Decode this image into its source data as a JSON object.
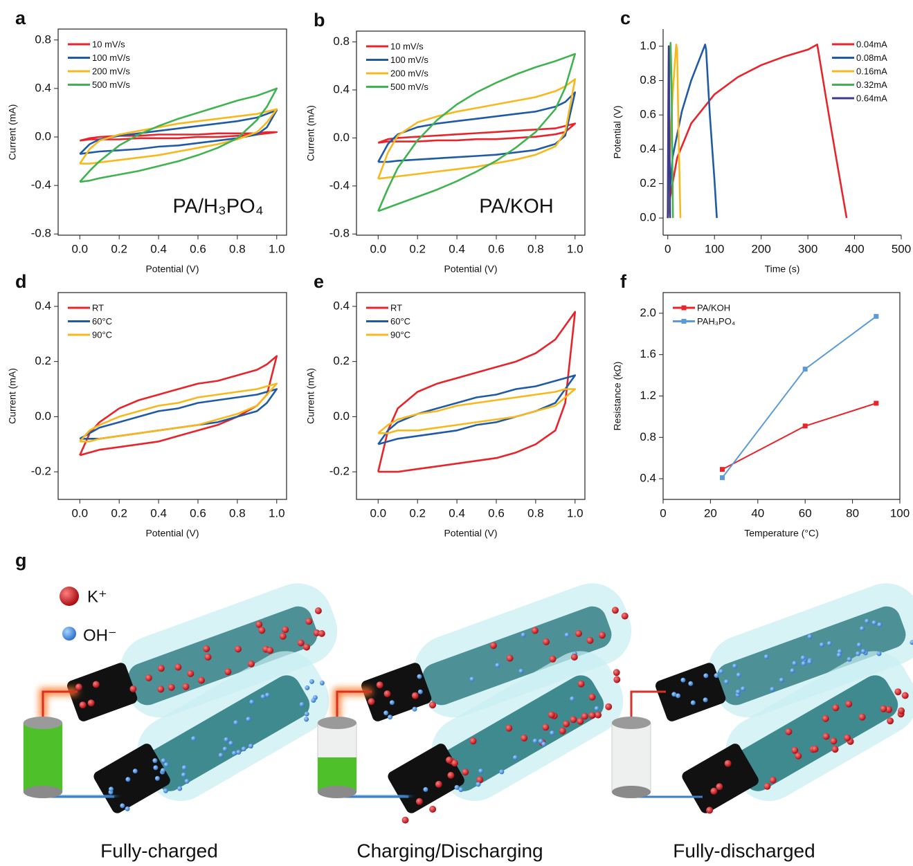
{
  "chart_data": [
    {
      "type": "line",
      "panel": "a",
      "frame": true,
      "xlabel": "Potential (V)",
      "ylabel": "Current (mA)",
      "annotation": "PA/H₃PO₄",
      "legend": "upper left",
      "xlim": [
        -0.11,
        1.05
      ],
      "ylim": [
        -0.81,
        0.89
      ],
      "xticks": [
        {
          "value": 0,
          "label": "0.0"
        },
        0.2,
        0.4,
        0.6,
        0.8,
        {
          "value": 1,
          "label": "1.0"
        }
      ],
      "yticks": [
        -0.8,
        -0.4,
        {
          "value": 0,
          "label": "0.0"
        },
        0.4,
        0.8
      ],
      "x": [
        0,
        0.05,
        0.1,
        0.2,
        0.3,
        0.4,
        0.5,
        0.6,
        0.7,
        0.8,
        0.9,
        0.95,
        1,
        0.95,
        0.9,
        0.8,
        0.7,
        0.6,
        0.5,
        0.4,
        0.3,
        0.2,
        0.1,
        0.05,
        0
      ],
      "series": [
        {
          "name": "10   mV/s",
          "color": "#e8232a",
          "values": [
            -0.03,
            -0.01,
            0,
            0.01,
            0.01,
            0.02,
            0.02,
            0.02,
            0.03,
            0.03,
            0.03,
            0.04,
            0.04,
            0.03,
            0.02,
            0.01,
            0,
            0,
            -0.01,
            -0.01,
            -0.01,
            -0.02,
            -0.02,
            -0.02,
            -0.03
          ]
        },
        {
          "name": "100 mV/s",
          "color": "#1f5aa6",
          "values": [
            -0.14,
            -0.06,
            -0.02,
            0.01,
            0.03,
            0.05,
            0.07,
            0.09,
            0.11,
            0.13,
            0.16,
            0.19,
            0.22,
            0.08,
            0.02,
            -0.01,
            -0.03,
            -0.05,
            -0.07,
            -0.08,
            -0.1,
            -0.11,
            -0.12,
            -0.13,
            -0.14
          ]
        },
        {
          "name": "200 mV/s",
          "color": "#f7b81c",
          "values": [
            -0.22,
            -0.1,
            -0.03,
            0.02,
            0.05,
            0.08,
            0.11,
            0.13,
            0.15,
            0.17,
            0.19,
            0.21,
            0.23,
            0.12,
            0.04,
            -0.02,
            -0.06,
            -0.09,
            -0.12,
            -0.15,
            -0.17,
            -0.19,
            -0.21,
            -0.22,
            -0.22
          ]
        },
        {
          "name": "500 mV/s",
          "color": "#3fb34f",
          "values": [
            -0.37,
            -0.28,
            -0.2,
            -0.07,
            0.02,
            0.09,
            0.15,
            0.2,
            0.25,
            0.3,
            0.34,
            0.37,
            0.4,
            0.25,
            0.14,
            -0.01,
            -0.09,
            -0.15,
            -0.2,
            -0.24,
            -0.28,
            -0.31,
            -0.34,
            -0.36,
            -0.37
          ]
        }
      ]
    },
    {
      "type": "line",
      "panel": "b",
      "frame": true,
      "xlabel": "Potential (V)",
      "ylabel": "Current (mA)",
      "annotation": "PA/KOH",
      "legend": "upper left",
      "xlim": [
        -0.11,
        1.05
      ],
      "ylim": [
        -0.81,
        0.89
      ],
      "xticks": [
        {
          "value": 0,
          "label": "0.0"
        },
        0.2,
        0.4,
        0.6,
        0.8,
        {
          "value": 1,
          "label": "1.0"
        }
      ],
      "yticks": [
        -0.8,
        -0.4,
        {
          "value": 0,
          "label": "0.0"
        },
        0.4,
        0.8
      ],
      "x": [
        0,
        0.05,
        0.1,
        0.2,
        0.3,
        0.4,
        0.5,
        0.6,
        0.7,
        0.8,
        0.9,
        0.95,
        1,
        0.95,
        0.9,
        0.8,
        0.7,
        0.6,
        0.5,
        0.4,
        0.3,
        0.2,
        0.1,
        0.05,
        0
      ],
      "series": [
        {
          "name": "10   mV/s",
          "color": "#e8232a",
          "values": [
            -0.04,
            -0.01,
            0,
            0.01,
            0.02,
            0.03,
            0.04,
            0.05,
            0.06,
            0.07,
            0.08,
            0.1,
            0.12,
            0.05,
            0.03,
            0.01,
            0,
            -0.01,
            -0.01,
            -0.02,
            -0.02,
            -0.03,
            -0.03,
            -0.03,
            -0.04
          ]
        },
        {
          "name": "100 mV/s",
          "color": "#1f5aa6",
          "values": [
            -0.2,
            -0.05,
            0.03,
            0.09,
            0.12,
            0.14,
            0.16,
            0.18,
            0.2,
            0.22,
            0.26,
            0.3,
            0.38,
            0.02,
            -0.05,
            -0.1,
            -0.12,
            -0.14,
            -0.15,
            -0.16,
            -0.17,
            -0.18,
            -0.19,
            -0.2,
            -0.2
          ]
        },
        {
          "name": "200 mV/s",
          "color": "#f7b81c",
          "values": [
            -0.34,
            -0.12,
            0.02,
            0.13,
            0.18,
            0.22,
            0.25,
            0.28,
            0.31,
            0.34,
            0.39,
            0.43,
            0.49,
            0.05,
            -0.07,
            -0.14,
            -0.18,
            -0.21,
            -0.24,
            -0.26,
            -0.28,
            -0.3,
            -0.32,
            -0.33,
            -0.34
          ]
        },
        {
          "name": "500 mV/s",
          "color": "#3fb34f",
          "values": [
            -0.61,
            -0.42,
            -0.25,
            -0.02,
            0.15,
            0.28,
            0.38,
            0.46,
            0.53,
            0.59,
            0.64,
            0.67,
            0.7,
            0.42,
            0.24,
            0.05,
            -0.08,
            -0.19,
            -0.28,
            -0.36,
            -0.43,
            -0.49,
            -0.55,
            -0.58,
            -0.61
          ]
        }
      ]
    },
    {
      "type": "line",
      "panel": "c",
      "frame": false,
      "xlabel": "Time (s)",
      "ylabel": "Potential (V)",
      "legend": "upper right",
      "xlim": [
        -10,
        500
      ],
      "ylim": [
        -0.1,
        1.1
      ],
      "xticks": [
        0,
        100,
        200,
        300,
        400,
        500
      ],
      "yticks": [
        {
          "value": 0,
          "label": "0.0"
        },
        0.2,
        0.4,
        0.6,
        0.8,
        {
          "value": 1,
          "label": "1.0"
        }
      ],
      "series": [
        {
          "name": "0.04mA",
          "color": "#e8232a",
          "x": [
            0,
            5,
            20,
            50,
            100,
            150,
            200,
            250,
            300,
            320,
            322,
            340,
            360,
            383
          ],
          "values": [
            0,
            0.12,
            0.35,
            0.55,
            0.72,
            0.82,
            0.89,
            0.94,
            0.98,
            1.01,
            0.98,
            0.68,
            0.36,
            0
          ]
        },
        {
          "name": "0.08mA",
          "color": "#1f5aa6",
          "x": [
            0,
            10,
            30,
            50,
            70,
            80,
            82,
            90,
            100,
            105
          ],
          "values": [
            0,
            0.35,
            0.62,
            0.8,
            0.94,
            1.01,
            0.98,
            0.6,
            0.22,
            0
          ]
        },
        {
          "name": "0.16mA",
          "color": "#f7b81c",
          "x": [
            0,
            5,
            10,
            15,
            18,
            20,
            23,
            27
          ],
          "values": [
            0,
            0.4,
            0.7,
            0.9,
            1.01,
            0.98,
            0.5,
            0
          ]
        },
        {
          "name": "0.32mA",
          "color": "#3fb34f",
          "x": [
            0,
            2,
            4,
            6,
            8,
            11
          ],
          "values": [
            0,
            0.5,
            0.9,
            1.02,
            0.8,
            0
          ]
        },
        {
          "name": "0.64mA",
          "color": "#3d3a8c",
          "x": [
            0,
            1,
            2,
            3,
            5
          ],
          "values": [
            0,
            0.6,
            1,
            0.7,
            0
          ]
        }
      ]
    },
    {
      "type": "line",
      "panel": "d",
      "frame": true,
      "xlabel": "Potential (V)",
      "ylabel": "Current (mA)",
      "legend": "upper left",
      "xlim": [
        -0.11,
        1.05
      ],
      "ylim": [
        -0.3,
        0.45
      ],
      "xticks": [
        {
          "value": 0,
          "label": "0.0"
        },
        0.2,
        0.4,
        0.6,
        0.8,
        {
          "value": 1,
          "label": "1.0"
        }
      ],
      "yticks": [
        -0.2,
        {
          "value": 0,
          "label": "0.0"
        },
        0.2,
        0.4
      ],
      "x": [
        0,
        0.05,
        0.1,
        0.2,
        0.3,
        0.4,
        0.5,
        0.6,
        0.7,
        0.8,
        0.9,
        0.95,
        1,
        0.95,
        0.9,
        0.8,
        0.7,
        0.6,
        0.5,
        0.4,
        0.3,
        0.2,
        0.1,
        0.05,
        0
      ],
      "series": [
        {
          "name": "RT",
          "color": "#e8232a",
          "values": [
            -0.14,
            -0.06,
            -0.02,
            0.03,
            0.06,
            0.08,
            0.1,
            0.12,
            0.13,
            0.15,
            0.17,
            0.19,
            0.22,
            0.08,
            0.04,
            0,
            -0.03,
            -0.05,
            -0.07,
            -0.09,
            -0.1,
            -0.11,
            -0.12,
            -0.13,
            -0.14
          ]
        },
        {
          "name": "60°C",
          "color": "#1f5aa6",
          "values": [
            -0.08,
            -0.06,
            -0.04,
            -0.02,
            0,
            0.02,
            0.03,
            0.05,
            0.06,
            0.07,
            0.08,
            0.09,
            0.1,
            0.05,
            0.02,
            0,
            -0.02,
            -0.03,
            -0.04,
            -0.05,
            -0.06,
            -0.07,
            -0.08,
            -0.08,
            -0.08
          ]
        },
        {
          "name": "90°C",
          "color": "#f7b81c",
          "values": [
            -0.09,
            -0.05,
            -0.03,
            0,
            0.02,
            0.04,
            0.05,
            0.07,
            0.08,
            0.09,
            0.1,
            0.11,
            0.12,
            0.08,
            0.04,
            0.01,
            -0.01,
            -0.03,
            -0.04,
            -0.05,
            -0.06,
            -0.07,
            -0.08,
            -0.09,
            -0.09
          ]
        }
      ]
    },
    {
      "type": "line",
      "panel": "e",
      "frame": true,
      "xlabel": "Potential (V)",
      "ylabel": "Current (mA)",
      "legend": "upper left",
      "xlim": [
        -0.11,
        1.05
      ],
      "ylim": [
        -0.3,
        0.45
      ],
      "xticks": [
        {
          "value": 0,
          "label": "0.0"
        },
        0.2,
        0.4,
        0.6,
        0.8,
        {
          "value": 1,
          "label": "1.0"
        }
      ],
      "yticks": [
        -0.2,
        {
          "value": 0,
          "label": "0.0"
        },
        0.2,
        0.4
      ],
      "x": [
        0,
        0.05,
        0.1,
        0.2,
        0.3,
        0.4,
        0.5,
        0.6,
        0.7,
        0.8,
        0.9,
        0.95,
        1,
        0.95,
        0.9,
        0.8,
        0.7,
        0.6,
        0.5,
        0.4,
        0.3,
        0.2,
        0.1,
        0.05,
        0
      ],
      "series": [
        {
          "name": "RT",
          "color": "#e8232a",
          "values": [
            -0.2,
            -0.05,
            0.03,
            0.09,
            0.12,
            0.14,
            0.16,
            0.18,
            0.2,
            0.23,
            0.28,
            0.33,
            0.38,
            0.05,
            -0.05,
            -0.1,
            -0.13,
            -0.15,
            -0.16,
            -0.17,
            -0.18,
            -0.19,
            -0.2,
            -0.2,
            -0.2
          ]
        },
        {
          "name": "60°C",
          "color": "#1f5aa6",
          "values": [
            -0.1,
            -0.05,
            -0.02,
            0.01,
            0.03,
            0.05,
            0.07,
            0.08,
            0.1,
            0.11,
            0.13,
            0.14,
            0.15,
            0.1,
            0.05,
            0.02,
            0,
            -0.02,
            -0.03,
            -0.05,
            -0.06,
            -0.07,
            -0.08,
            -0.09,
            -0.1
          ]
        },
        {
          "name": "90°C",
          "color": "#f7b81c",
          "values": [
            -0.06,
            -0.03,
            -0.01,
            0.01,
            0.02,
            0.04,
            0.05,
            0.06,
            0.07,
            0.08,
            0.09,
            0.1,
            0.1,
            0.07,
            0.04,
            0.02,
            0,
            -0.01,
            -0.02,
            -0.03,
            -0.04,
            -0.05,
            -0.05,
            -0.06,
            -0.06
          ]
        }
      ]
    },
    {
      "type": "line",
      "panel": "f",
      "frame": true,
      "markers": true,
      "xlabel": "Temperature (°C)",
      "ylabel": "Resistance (kΩ)",
      "legend": "upper left",
      "xlim": [
        0,
        100
      ],
      "ylim": [
        0.2,
        2.2
      ],
      "xticks": [
        0,
        20,
        40,
        60,
        80,
        100
      ],
      "yticks": [
        0.4,
        0.8,
        1.2,
        1.6,
        {
          "value": 2,
          "label": "2.0"
        }
      ],
      "x": [
        25,
        60,
        90
      ],
      "series": [
        {
          "name": "PA/KOH",
          "color": "#e8232a",
          "values": [
            0.49,
            0.91,
            1.13
          ]
        },
        {
          "name": "PAH₃PO₄",
          "color": "#5b9bd5",
          "values": [
            0.41,
            1.46,
            1.97
          ]
        }
      ]
    }
  ],
  "illustration": {
    "panel": "g",
    "ions": [
      "K⁺",
      "OH⁻"
    ],
    "captions": [
      "Fully-charged",
      "Charging/Discharging",
      "Fully-discharged"
    ]
  }
}
